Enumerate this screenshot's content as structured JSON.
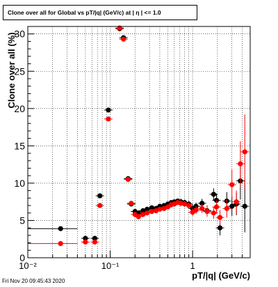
{
  "title": "Clone  over all for Global vs pT/|q| (GeV/c) at |  η | <= 1.0",
  "footer": "Fri Nov 20 09:45:43 2020",
  "chart_data": {
    "type": "scatter",
    "title": "Clone  over all for Global vs pT/|q| (GeV/c) at |  η | <= 1.0",
    "xlabel": "pT/|q| (GeV/c)",
    "ylabel": "Clone  over all (%)",
    "xscale": "log",
    "xlim": [
      0.01,
      5
    ],
    "ylim": [
      0,
      31
    ],
    "grid": true,
    "xticks": [
      {
        "v": 0.01,
        "label": "10⁻²"
      },
      {
        "v": 0.1,
        "label": "10⁻¹"
      },
      {
        "v": 1,
        "label": "1"
      }
    ],
    "yticks": [
      0,
      5,
      10,
      15,
      20,
      25,
      30
    ],
    "series": [
      {
        "color": "#000000",
        "points": [
          {
            "x": 0.025,
            "y": 3.9,
            "xlo": 0.01,
            "xhi": 0.04,
            "ye": 0.2
          },
          {
            "x": 0.05,
            "y": 2.6,
            "ye": 0.2
          },
          {
            "x": 0.065,
            "y": 2.6,
            "ye": 0.2
          },
          {
            "x": 0.075,
            "y": 8.3,
            "ye": 0.3
          },
          {
            "x": 0.095,
            "y": 19.8,
            "ye": 0.3
          },
          {
            "x": 0.13,
            "y": 30.7,
            "ye": 0.3
          },
          {
            "x": 0.145,
            "y": 29.5,
            "ye": 0.3
          },
          {
            "x": 0.165,
            "y": 10.6,
            "ye": 0.3
          },
          {
            "x": 0.18,
            "y": 7.2,
            "ye": 0.3
          },
          {
            "x": 0.2,
            "y": 6.2,
            "ye": 0.3
          },
          {
            "x": 0.22,
            "y": 6.0,
            "ye": 0.3
          },
          {
            "x": 0.25,
            "y": 6.3,
            "ye": 0.3
          },
          {
            "x": 0.28,
            "y": 6.5,
            "ye": 0.3
          },
          {
            "x": 0.32,
            "y": 6.7,
            "ye": 0.3
          },
          {
            "x": 0.36,
            "y": 6.6,
            "ye": 0.3
          },
          {
            "x": 0.4,
            "y": 6.9,
            "ye": 0.3
          },
          {
            "x": 0.45,
            "y": 7.0,
            "ye": 0.3
          },
          {
            "x": 0.5,
            "y": 7.2,
            "ye": 0.3
          },
          {
            "x": 0.55,
            "y": 7.4,
            "ye": 0.3
          },
          {
            "x": 0.6,
            "y": 7.5,
            "ye": 0.3
          },
          {
            "x": 0.66,
            "y": 7.6,
            "ye": 0.3
          },
          {
            "x": 0.72,
            "y": 7.5,
            "ye": 0.4
          },
          {
            "x": 0.8,
            "y": 7.4,
            "ye": 0.4
          },
          {
            "x": 0.9,
            "y": 7.2,
            "ye": 0.4
          },
          {
            "x": 1.0,
            "y": 6.6,
            "ye": 0.5
          },
          {
            "x": 1.1,
            "y": 6.9,
            "ye": 0.5
          },
          {
            "x": 1.3,
            "y": 7.3,
            "ye": 0.6
          },
          {
            "x": 1.5,
            "y": 6.3,
            "ye": 0.7
          },
          {
            "x": 1.8,
            "y": 8.5,
            "ye": 0.8
          },
          {
            "x": 1.95,
            "y": 7.7,
            "ye": 0.9
          },
          {
            "x": 2.15,
            "y": 4.0,
            "ye": 1.0
          },
          {
            "x": 2.6,
            "y": 7.6,
            "ye": 1.2
          },
          {
            "x": 3.0,
            "y": 6.9,
            "ye": 1.3
          },
          {
            "x": 3.4,
            "y": 7.2,
            "ye": 1.5
          },
          {
            "x": 3.8,
            "y": 10.3,
            "ye": 2.5
          },
          {
            "x": 4.3,
            "y": 6.9,
            "ye": 3.5
          }
        ]
      },
      {
        "color": "#ff0000",
        "points": [
          {
            "x": 0.025,
            "y": 1.9,
            "xlo": 0.01,
            "xhi": 0.04,
            "ye": 0.15
          },
          {
            "x": 0.05,
            "y": 2.1,
            "ye": 0.15
          },
          {
            "x": 0.065,
            "y": 2.1,
            "ye": 0.15
          },
          {
            "x": 0.075,
            "y": 7.0,
            "ye": 0.3
          },
          {
            "x": 0.095,
            "y": 18.6,
            "ye": 0.3
          },
          {
            "x": 0.13,
            "y": 30.8,
            "ye": 0.3
          },
          {
            "x": 0.145,
            "y": 29.3,
            "ye": 0.3
          },
          {
            "x": 0.165,
            "y": 10.5,
            "ye": 0.3
          },
          {
            "x": 0.18,
            "y": 7.3,
            "ye": 0.3
          },
          {
            "x": 0.2,
            "y": 5.8,
            "ye": 0.3
          },
          {
            "x": 0.22,
            "y": 5.5,
            "ye": 0.3
          },
          {
            "x": 0.25,
            "y": 5.8,
            "ye": 0.3
          },
          {
            "x": 0.28,
            "y": 6.0,
            "ye": 0.3
          },
          {
            "x": 0.32,
            "y": 6.2,
            "ye": 0.3
          },
          {
            "x": 0.36,
            "y": 6.3,
            "ye": 0.3
          },
          {
            "x": 0.4,
            "y": 6.5,
            "ye": 0.3
          },
          {
            "x": 0.45,
            "y": 6.6,
            "ye": 0.3
          },
          {
            "x": 0.5,
            "y": 6.8,
            "ye": 0.3
          },
          {
            "x": 0.55,
            "y": 7.1,
            "ye": 0.3
          },
          {
            "x": 0.6,
            "y": 7.2,
            "ye": 0.3
          },
          {
            "x": 0.66,
            "y": 7.4,
            "ye": 0.3
          },
          {
            "x": 0.72,
            "y": 7.3,
            "ye": 0.4
          },
          {
            "x": 0.8,
            "y": 7.2,
            "ye": 0.4
          },
          {
            "x": 0.9,
            "y": 7.0,
            "ye": 0.4
          },
          {
            "x": 1.0,
            "y": 6.1,
            "ye": 0.5
          },
          {
            "x": 1.1,
            "y": 6.4,
            "ye": 0.5
          },
          {
            "x": 1.3,
            "y": 6.6,
            "ye": 0.6
          },
          {
            "x": 1.5,
            "y": 6.2,
            "ye": 0.7
          },
          {
            "x": 1.8,
            "y": 6.0,
            "ye": 0.8
          },
          {
            "x": 1.95,
            "y": 6.8,
            "ye": 0.9
          },
          {
            "x": 2.15,
            "y": 5.4,
            "ye": 1.0
          },
          {
            "x": 2.6,
            "y": 6.6,
            "ye": 1.2
          },
          {
            "x": 3.0,
            "y": 9.8,
            "ye": 2.0
          },
          {
            "x": 3.4,
            "y": 7.5,
            "ye": 1.5
          },
          {
            "x": 3.8,
            "y": 12.6,
            "ye": 3.0
          },
          {
            "x": 4.3,
            "y": 14.2,
            "ye": 5.0
          }
        ]
      }
    ]
  }
}
